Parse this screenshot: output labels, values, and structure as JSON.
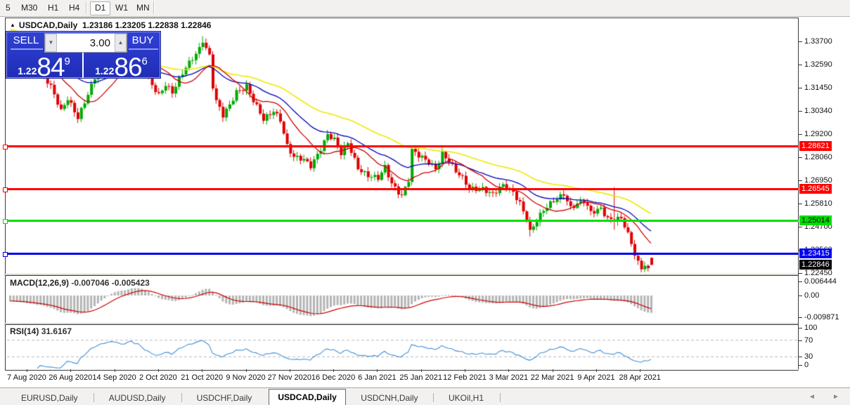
{
  "toolbar": {
    "items": [
      {
        "label": "5",
        "active": false
      },
      {
        "label": "M30",
        "active": false
      },
      {
        "label": "H1",
        "active": false
      },
      {
        "label": "H4",
        "active": false
      },
      {
        "label": "D1",
        "active": true
      },
      {
        "label": "W1",
        "active": false
      },
      {
        "label": "MN",
        "active": false
      }
    ]
  },
  "chart": {
    "collapse_arrow": "▲",
    "symbol_title": "USDCAD,Daily",
    "ohlc_text": "1.23186 1.23205 1.22838 1.22846"
  },
  "trade_panel": {
    "sell_label": "SELL",
    "buy_label": "BUY",
    "volume_value": "3.00",
    "volume_down_icon": "▼",
    "volume_up_icon": "▲",
    "sell_price": {
      "prefix": "1.22",
      "big": "84",
      "sup": "9"
    },
    "buy_price": {
      "prefix": "1.22",
      "big": "86",
      "sup": "6"
    }
  },
  "price_axis": {
    "ticks": [
      "1.33700",
      "1.32590",
      "1.31450",
      "1.30340",
      "1.29200",
      "1.28060",
      "1.26950",
      "1.25810",
      "1.24700",
      "1.23560",
      "1.22450"
    ],
    "badges": [
      {
        "label": "1.28621",
        "value": 1.28621,
        "bg": "#ff0000",
        "fg": "#ffffff"
      },
      {
        "label": "1.26545",
        "value": 1.26545,
        "bg": "#ff0000",
        "fg": "#ffffff"
      },
      {
        "label": "1.25014",
        "value": 1.25014,
        "bg": "#00dd00",
        "fg": "#000000"
      },
      {
        "label": "1.23415",
        "value": 1.23415,
        "bg": "#0000ee",
        "fg": "#ffffff"
      },
      {
        "label": "1.22846",
        "value": 1.22846,
        "bg": "#000000",
        "fg": "#ffffff"
      }
    ]
  },
  "macd_pane": {
    "label": "MACD(12,26,9)",
    "value1": "-0.007046",
    "value2": "-0.005423",
    "axis": [
      {
        "label": "0.006444",
        "value": 0.006444
      },
      {
        "label": "0.00",
        "value": 0
      },
      {
        "label": "-0.009871",
        "value": -0.009871
      }
    ]
  },
  "rsi_pane": {
    "label": "RSI(14)",
    "value": "31.6167",
    "axis": [
      {
        "label": "100",
        "value": 100
      },
      {
        "label": "70",
        "value": 70
      },
      {
        "label": "30",
        "value": 30
      },
      {
        "label": "0",
        "value": 0
      }
    ]
  },
  "tabs": {
    "items": [
      {
        "label": "EURUSD,Daily",
        "active": false
      },
      {
        "label": "AUDUSD,Daily",
        "active": false
      },
      {
        "label": "USDCHF,Daily",
        "active": false
      },
      {
        "label": "USDCAD,Daily",
        "active": true
      },
      {
        "label": "USDCNH,Daily",
        "active": false
      },
      {
        "label": "UKOil,H1",
        "active": false
      }
    ],
    "scroll_left_icon": "◄",
    "scroll_right_icon": "►"
  },
  "chart_data": {
    "type": "candlestick",
    "symbol": "USDCAD",
    "timeframe": "Daily",
    "current_bar": {
      "open": 1.23186,
      "high": 1.23205,
      "low": 1.22838,
      "close": 1.22846
    },
    "date_labels": [
      "7 Aug 2020",
      "26 Aug 2020",
      "14 Sep 2020",
      "2 Oct 2020",
      "21 Oct 2020",
      "9 Nov 2020",
      "27 Nov 2020",
      "16 Dec 2020",
      "6 Jan 2021",
      "25 Jan 2021",
      "12 Feb 2021",
      "3 Mar 2021",
      "22 Mar 2021",
      "9 Apr 2021",
      "28 Apr 2021"
    ],
    "price_range_visible": [
      1.2245,
      1.3442
    ],
    "horizontal_levels": [
      {
        "value": 1.28621,
        "color": "#ff0000",
        "thickness": 3
      },
      {
        "value": 1.26545,
        "color": "#ff0000",
        "thickness": 3
      },
      {
        "value": 1.25014,
        "color": "#00dd00",
        "thickness": 3
      },
      {
        "value": 1.23415,
        "color": "#0000ee",
        "thickness": 3
      }
    ],
    "close_keyframes": [
      [
        0,
        1.333
      ],
      [
        3,
        1.329
      ],
      [
        6,
        1.3255
      ],
      [
        9,
        1.3235
      ],
      [
        12,
        1.315
      ],
      [
        15,
        1.3025
      ],
      [
        17,
        1.309
      ],
      [
        20,
        1.3005
      ],
      [
        22,
        1.308
      ],
      [
        25,
        1.319
      ],
      [
        28,
        1.327
      ],
      [
        31,
        1.332
      ],
      [
        33,
        1.328
      ],
      [
        36,
        1.3335
      ],
      [
        38,
        1.33
      ],
      [
        40,
        1.323
      ],
      [
        42,
        1.316
      ],
      [
        44,
        1.3115
      ],
      [
        46,
        1.3165
      ],
      [
        48,
        1.312
      ],
      [
        50,
        1.318
      ],
      [
        52,
        1.324
      ],
      [
        54,
        1.329
      ],
      [
        56,
        1.334
      ],
      [
        57,
        1.338
      ],
      [
        58,
        1.334
      ],
      [
        59,
        1.33
      ],
      [
        60,
        1.315
      ],
      [
        61,
        1.3075
      ],
      [
        63,
        1.3005
      ],
      [
        65,
        1.306
      ],
      [
        67,
        1.313
      ],
      [
        70,
        1.3155
      ],
      [
        72,
        1.308
      ],
      [
        75,
        1.2985
      ],
      [
        78,
        1.3035
      ],
      [
        80,
        1.2995
      ],
      [
        82,
        1.2865
      ],
      [
        84,
        1.2805
      ],
      [
        87,
        1.279
      ],
      [
        89,
        1.2765
      ],
      [
        92,
        1.2855
      ],
      [
        94,
        1.292
      ],
      [
        96,
        1.289
      ],
      [
        98,
        1.282
      ],
      [
        100,
        1.2875
      ],
      [
        103,
        1.276
      ],
      [
        106,
        1.272
      ],
      [
        109,
        1.27
      ],
      [
        111,
        1.2755
      ],
      [
        113,
        1.268
      ],
      [
        116,
        1.2625
      ],
      [
        118,
        1.27
      ],
      [
        119,
        1.284
      ],
      [
        121,
        1.281
      ],
      [
        124,
        1.278
      ],
      [
        126,
        1.2755
      ],
      [
        128,
        1.283
      ],
      [
        130,
        1.279
      ],
      [
        132,
        1.2735
      ],
      [
        134,
        1.27
      ],
      [
        136,
        1.2655
      ],
      [
        140,
        1.266
      ],
      [
        143,
        1.2625
      ],
      [
        146,
        1.2665
      ],
      [
        149,
        1.264
      ],
      [
        151,
        1.259
      ],
      [
        153,
        1.251
      ],
      [
        154,
        1.2445
      ],
      [
        155,
        1.247
      ],
      [
        158,
        1.2545
      ],
      [
        161,
        1.26
      ],
      [
        164,
        1.2635
      ],
      [
        166,
        1.256
      ],
      [
        170,
        1.259
      ],
      [
        172,
        1.254
      ],
      [
        175,
        1.2565
      ],
      [
        177,
        1.251
      ],
      [
        179,
        1.25
      ],
      [
        181,
        1.2505
      ],
      [
        182,
        1.247
      ],
      [
        184,
        1.239
      ],
      [
        185,
        1.234
      ],
      [
        186,
        1.23
      ],
      [
        187,
        1.2275
      ],
      [
        188,
        1.229
      ],
      [
        189,
        1.226
      ],
      [
        190,
        1.22846
      ]
    ],
    "candle_overrides": {
      "57": {
        "h": 1.3395
      },
      "154": {
        "l": 1.2422
      },
      "179": {
        "o": 1.2505,
        "h": 1.2662,
        "l": 1.2455,
        "c": 1.25
      },
      "189": {
        "l": 1.2252
      },
      "190": {
        "o": 1.23186,
        "h": 1.23205,
        "l": 1.22838,
        "c": 1.22846
      }
    },
    "colors": {
      "bull": "#00a800",
      "bear": "#dd0000",
      "ma_fast": "#cc0000",
      "ma_mid": "#0000b8",
      "ma_slow": "#f0e800",
      "macd_hist": "#b4b4b4",
      "macd_signal": "#cc0000",
      "rsi_line": "#3e8fd6",
      "rsi_dash": "#b8b8b8"
    },
    "macd": {
      "fast": 12,
      "slow": 26,
      "signal": 9,
      "current_macd": -0.007046,
      "current_signal": -0.005423,
      "axis_max": 0.006444,
      "axis_min": -0.009871
    },
    "rsi": {
      "period": 14,
      "current": 31.6167,
      "overbought": 70,
      "oversold": 30
    }
  }
}
